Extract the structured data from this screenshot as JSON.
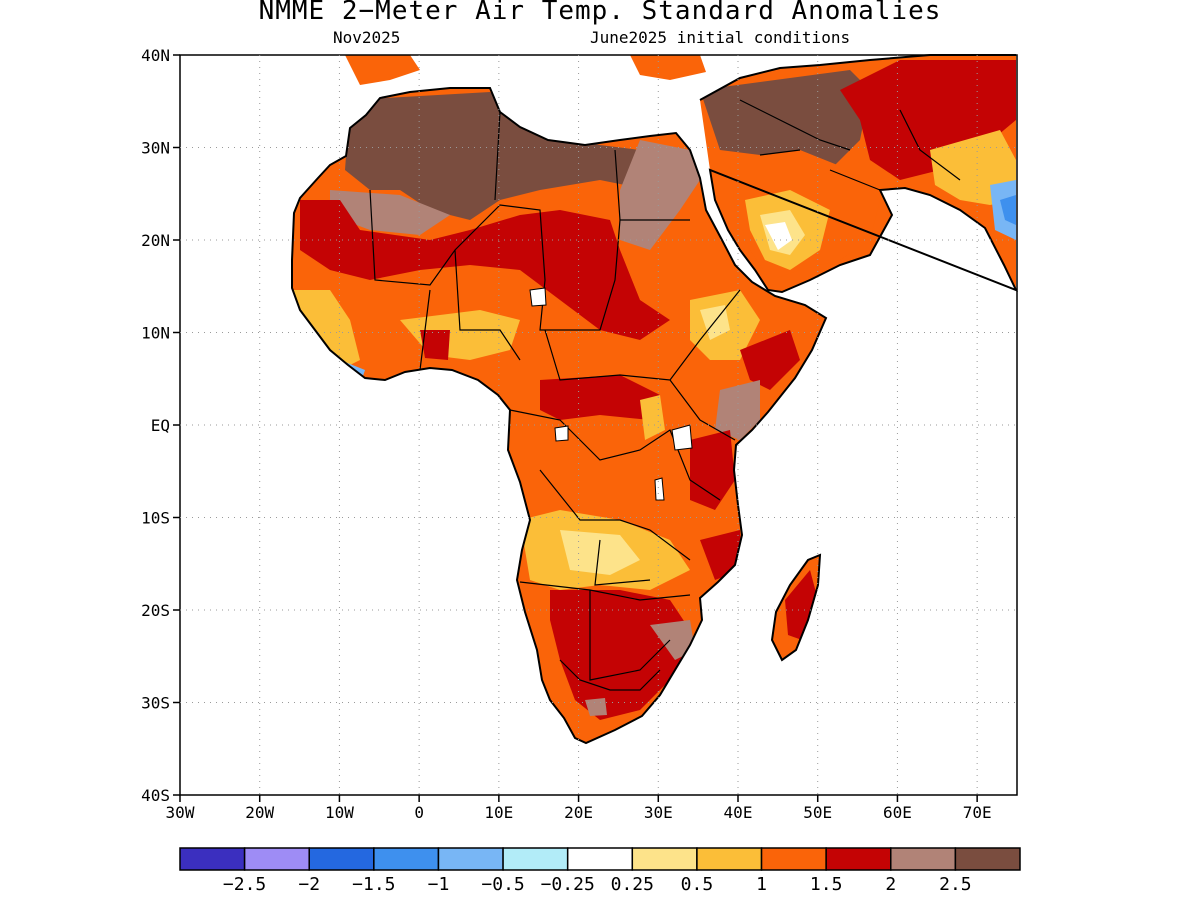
{
  "title": "NMME 2−Meter Air Temp. Standard Anomalies",
  "subtitle_left": "Nov2025",
  "subtitle_right": "June2025 initial conditions",
  "map": {
    "lat_ticks": [
      {
        "value": 40,
        "label": "40N"
      },
      {
        "value": 30,
        "label": "30N"
      },
      {
        "value": 20,
        "label": "20N"
      },
      {
        "value": 10,
        "label": "10N"
      },
      {
        "value": 0,
        "label": "EQ"
      },
      {
        "value": -10,
        "label": "10S"
      },
      {
        "value": -20,
        "label": "20S"
      },
      {
        "value": -30,
        "label": "30S"
      },
      {
        "value": -40,
        "label": "40S"
      }
    ],
    "lon_ticks": [
      {
        "value": -30,
        "label": "30W"
      },
      {
        "value": -20,
        "label": "20W"
      },
      {
        "value": -10,
        "label": "10W"
      },
      {
        "value": 0,
        "label": "0"
      },
      {
        "value": 10,
        "label": "10E"
      },
      {
        "value": 20,
        "label": "20E"
      },
      {
        "value": 30,
        "label": "30E"
      },
      {
        "value": 40,
        "label": "40E"
      },
      {
        "value": 50,
        "label": "50E"
      },
      {
        "value": 60,
        "label": "60E"
      },
      {
        "value": 70,
        "label": "70E"
      }
    ],
    "lon_range": [
      -30,
      75
    ],
    "lat_range": [
      -40,
      40
    ],
    "grid": "dotted"
  },
  "colorbar": {
    "colors": [
      "#3b2fbf",
      "#9e8cf5",
      "#2468e0",
      "#3e90ee",
      "#78b6f5",
      "#b2ecf8",
      "#ffffff",
      "#fde38a",
      "#fbbe38",
      "#fa6409",
      "#c40304",
      "#b18377",
      "#7a4d3f"
    ],
    "labels": [
      "−2.5",
      "−2",
      "−1.5",
      "−1",
      "−0.5",
      "−0.25",
      "0.25",
      "0.5",
      "1",
      "1.5",
      "2",
      "2.5"
    ]
  }
}
